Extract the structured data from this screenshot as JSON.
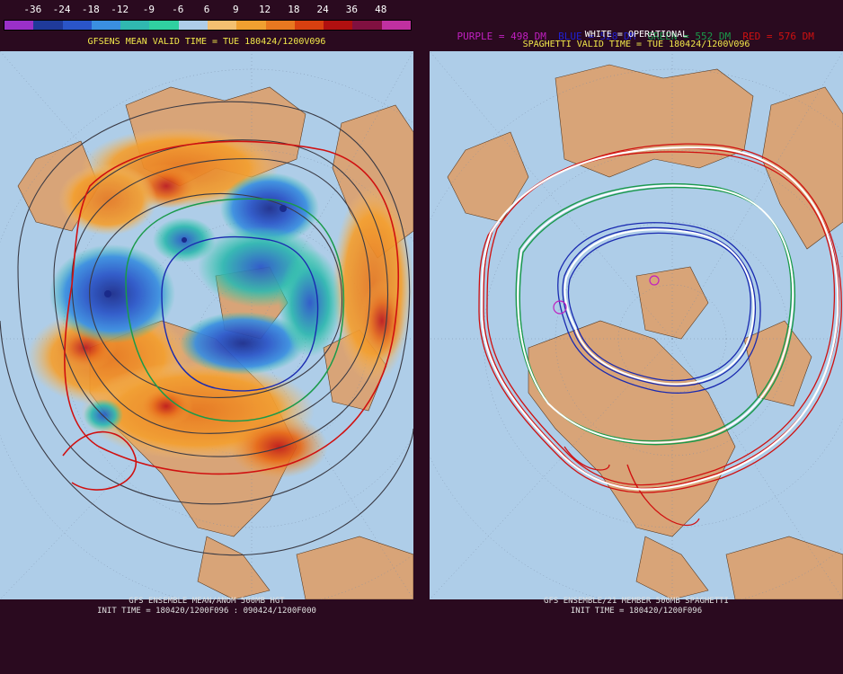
{
  "left": {
    "colorbar": {
      "labels": [
        "-36",
        "-24",
        "-18",
        "-12",
        "-9",
        "-6",
        "6",
        "9",
        "12",
        "18",
        "24",
        "36",
        "48"
      ],
      "colors": [
        "#9a30c8",
        "#1f3a9a",
        "#2a55c8",
        "#3a8fe0",
        "#30b8b0",
        "#30d0a0",
        "#aecde8",
        "#f4c070",
        "#f0a030",
        "#e87820",
        "#d84010",
        "#b01010",
        "#801040",
        "#c030a0"
      ]
    },
    "title": "GFSENS MEAN VALID TIME = TUE 180424/1200V096",
    "footer1": "GFS ENSEMBLE MEAN/ANOM 500MB HGT",
    "footer2": "INIT TIME = 180420/1200F096 : 090424/1200F000"
  },
  "right": {
    "legend": {
      "purple": "PURPLE = 498 DM",
      "blue": "BLUE = 528 DM",
      "green": "GREEN = 552 DM",
      "red": "RED = 576 DM"
    },
    "white_label": "WHITE = OPERATIONAL",
    "title": "SPAGHETTI VALID TIME = TUE 180424/1200V096",
    "footer1": "GFS ENSEMBLE/21 MEMBER 500MB SPAGHETTI",
    "footer2": "INIT TIME = 180420/1200F096"
  },
  "colors": {
    "background": "#2a0a1f",
    "ocean": "#aecde8",
    "land": "#d8a478",
    "title_yellow": "#f2e84a"
  }
}
